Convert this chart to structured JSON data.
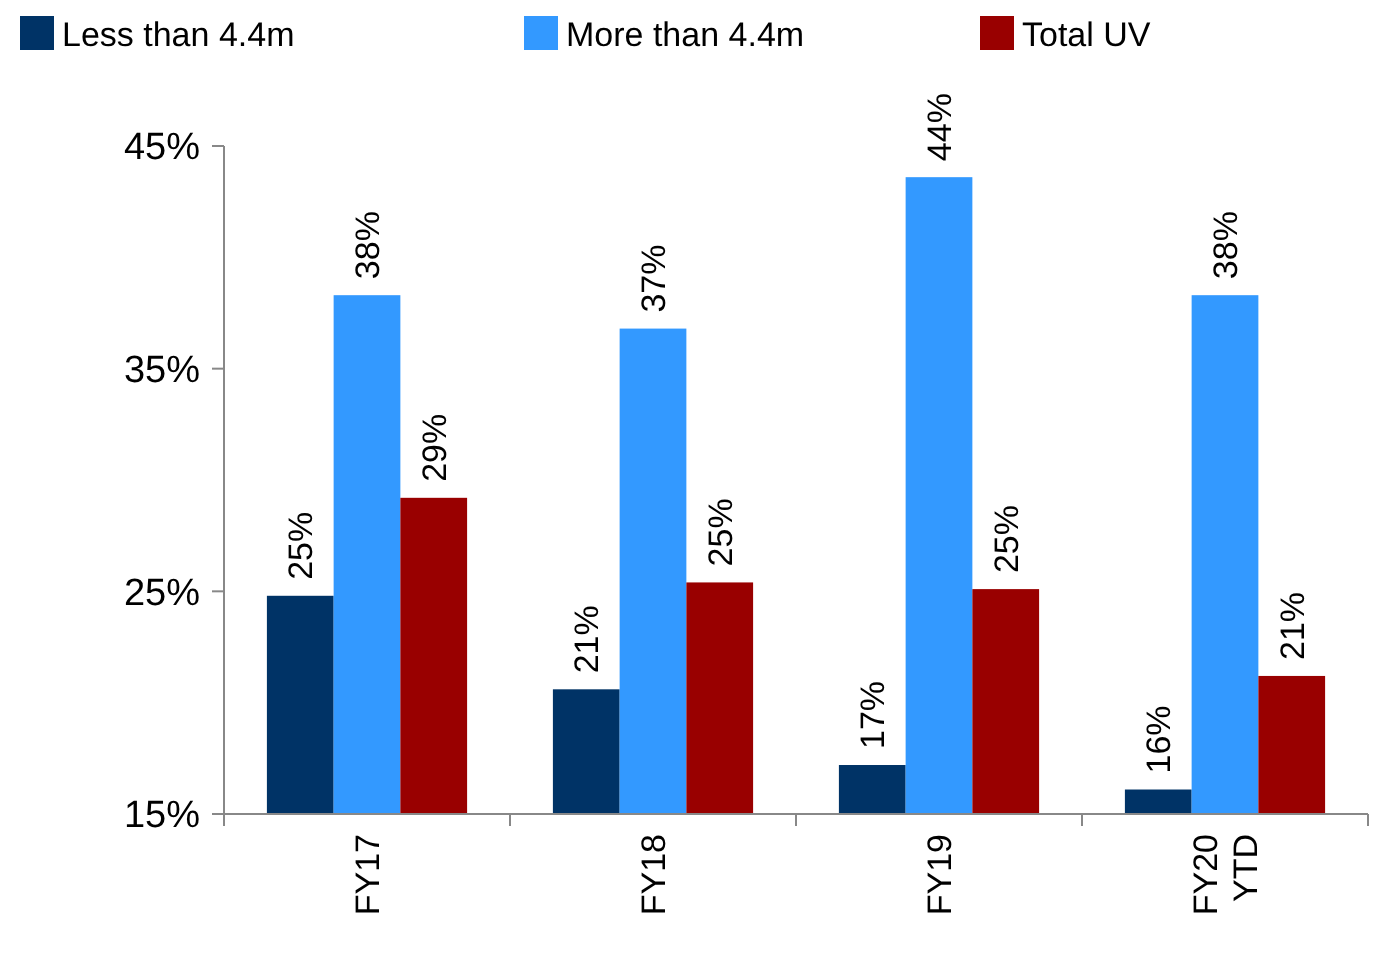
{
  "chart_data": {
    "type": "bar",
    "categories": [
      "FY17",
      "FY18",
      "FY19",
      "FY20 YTD"
    ],
    "series": [
      {
        "name": "Less than 4.4m",
        "color": "#003366",
        "values": [
          24.8,
          20.6,
          17.2,
          16.1
        ],
        "value_labels": [
          "25%",
          "21%",
          "17%",
          "16%"
        ]
      },
      {
        "name": "More than 4.4m",
        "color": "#3399ff",
        "values": [
          38.3,
          36.8,
          43.6,
          38.3
        ],
        "value_labels": [
          "38%",
          "37%",
          "44%",
          "38%"
        ]
      },
      {
        "name": "Total UV",
        "color": "#990000",
        "values": [
          29.2,
          25.4,
          25.1,
          21.2
        ],
        "value_labels": [
          "29%",
          "25%",
          "25%",
          "21%"
        ]
      }
    ],
    "ylim": [
      15,
      45
    ],
    "yticks": [
      {
        "value": 15,
        "label": "15%"
      },
      {
        "value": 25,
        "label": "25%"
      },
      {
        "value": 35,
        "label": "35%"
      },
      {
        "value": 45,
        "label": "45%"
      }
    ],
    "legend": "top",
    "grid": false
  }
}
